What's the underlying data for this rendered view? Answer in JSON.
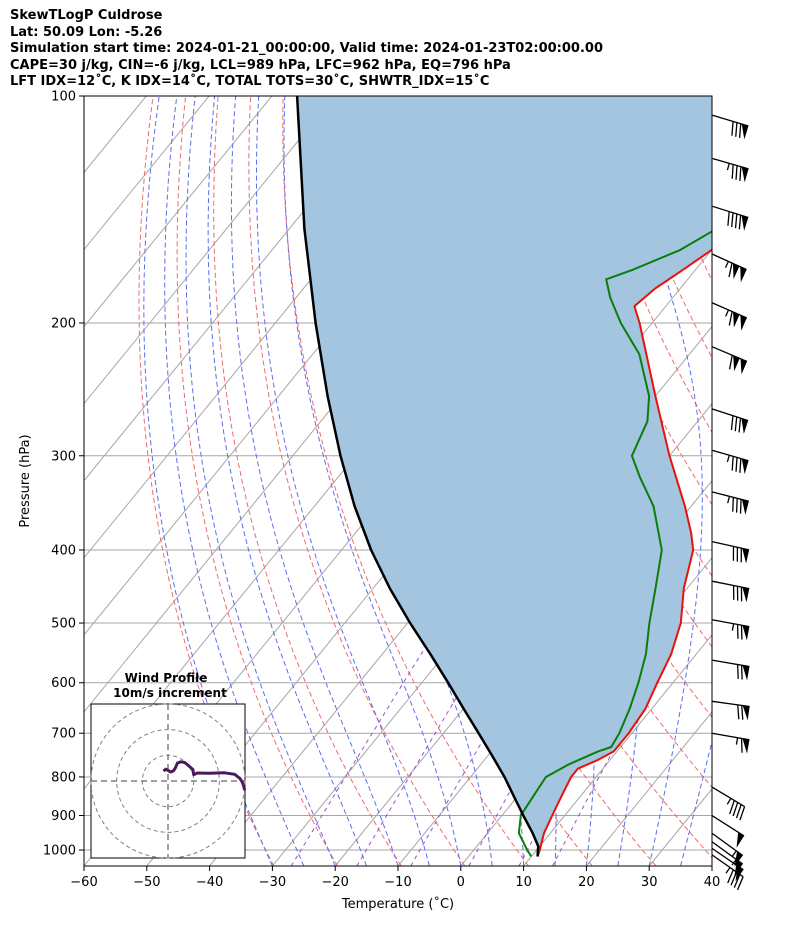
{
  "header": {
    "line1": "SkewTLogP Culdrose",
    "line2": "Lat: 50.09   Lon: -5.26",
    "line3": "Simulation start time: 2024-01-21_00:00:00, Valid time: 2024-01-23T02:00:00.00",
    "line4": "CAPE=30 j/kg, CIN=-6 j/kg, LCL=989 hPa, LFC=962 hPa, EQ=796 hPa",
    "line5": "LFT IDX=12˚C, K IDX=14˚C, TOTAL TOTS=30˚C, SHWTR_IDX=15˚C"
  },
  "chart_data": {
    "type": "line",
    "subtype": "skew-T log-P sounding",
    "xlabel": "Temperature (˚C)",
    "ylabel": "Pressure (hPa)",
    "xlim": [
      -60,
      40
    ],
    "ylim": [
      1050,
      100
    ],
    "y_scale": "log",
    "x_ticks": [
      -60,
      -50,
      -40,
      -30,
      -20,
      -10,
      0,
      10,
      20,
      30,
      40
    ],
    "y_ticks": [
      1000,
      900,
      800,
      700,
      600,
      500,
      400,
      300,
      200,
      100
    ],
    "grid": true,
    "colors": {
      "temperature": "#e8120c",
      "dewpoint": "#0a7d0a",
      "parcel": "#000000",
      "cape_fill": "#a3c5df",
      "dry_adiabats": "#f06a6a",
      "moist_adiabats": "#5a6ef0",
      "mixing_ratio": "#9c4fcf",
      "isotherms": "#a6a6a6",
      "hodograph": "#4a1a5e"
    },
    "series": [
      {
        "key": "temperature",
        "points": [
          [
            1020,
            11
          ],
          [
            1000,
            10.5
          ],
          [
            950,
            9
          ],
          [
            900,
            8
          ],
          [
            850,
            7
          ],
          [
            800,
            6
          ],
          [
            780,
            6
          ],
          [
            760,
            8
          ],
          [
            740,
            9.5
          ],
          [
            700,
            9.5
          ],
          [
            650,
            9
          ],
          [
            600,
            7.5
          ],
          [
            550,
            6
          ],
          [
            500,
            3.5
          ],
          [
            450,
            -0.5
          ],
          [
            400,
            -4
          ],
          [
            380,
            -6.5
          ],
          [
            350,
            -11
          ],
          [
            300,
            -20
          ],
          [
            250,
            -30
          ],
          [
            200,
            -42
          ],
          [
            190,
            -45
          ],
          [
            180,
            -44
          ],
          [
            170,
            -42
          ],
          [
            160,
            -40
          ],
          [
            150,
            -40
          ],
          [
            140,
            -41
          ],
          [
            130,
            -40
          ],
          [
            120,
            -37
          ],
          [
            110,
            -30
          ],
          [
            100,
            -28.5
          ]
        ]
      },
      {
        "key": "dewpoint",
        "points": [
          [
            1020,
            10
          ],
          [
            1000,
            8.5
          ],
          [
            950,
            5
          ],
          [
            900,
            3
          ],
          [
            850,
            2.5
          ],
          [
            800,
            2
          ],
          [
            770,
            4
          ],
          [
            740,
            7
          ],
          [
            730,
            8.5
          ],
          [
            700,
            8
          ],
          [
            650,
            6.5
          ],
          [
            600,
            4.5
          ],
          [
            550,
            2
          ],
          [
            500,
            -1.5
          ],
          [
            450,
            -5
          ],
          [
            400,
            -9
          ],
          [
            350,
            -16
          ],
          [
            320,
            -22
          ],
          [
            300,
            -26
          ],
          [
            270,
            -28
          ],
          [
            250,
            -31
          ],
          [
            220,
            -38
          ],
          [
            200,
            -45
          ],
          [
            185,
            -50
          ],
          [
            175,
            -53
          ],
          [
            170,
            -50
          ],
          [
            160,
            -45
          ],
          [
            150,
            -42
          ],
          [
            140,
            -43
          ],
          [
            130,
            -44
          ],
          [
            120,
            -46
          ],
          [
            110,
            -47
          ],
          [
            100,
            -46.5
          ]
        ]
      },
      {
        "key": "parcel",
        "points": [
          [
            1020,
            11
          ],
          [
            1000,
            10.2
          ],
          [
            989,
            9.8
          ],
          [
            950,
            7.2
          ],
          [
            900,
            3.4
          ],
          [
            850,
            -0.5
          ],
          [
            800,
            -4.6
          ],
          [
            750,
            -9.3
          ],
          [
            700,
            -14.4
          ],
          [
            650,
            -19.9
          ],
          [
            600,
            -25.8
          ],
          [
            550,
            -32.3
          ],
          [
            500,
            -39.6
          ],
          [
            450,
            -47.3
          ],
          [
            400,
            -55.3
          ],
          [
            350,
            -63.6
          ],
          [
            300,
            -72.4
          ],
          [
            250,
            -82.2
          ],
          [
            200,
            -93.6
          ],
          [
            150,
            -107.6
          ],
          [
            100,
            -126
          ]
        ]
      }
    ],
    "wind_barbs": [
      {
        "p": 1015,
        "u": -20,
        "v": 14
      },
      {
        "p": 995,
        "u": -22,
        "v": 15
      },
      {
        "p": 975,
        "u": -22,
        "v": 16
      },
      {
        "p": 950,
        "u": -22,
        "v": 16
      },
      {
        "p": 900,
        "u": -22,
        "v": 14
      },
      {
        "p": 825,
        "u": -20,
        "v": 12
      },
      {
        "p": 700,
        "u": -34,
        "v": 6
      },
      {
        "p": 635,
        "u": -36,
        "v": 5
      },
      {
        "p": 560,
        "u": -35,
        "v": 6
      },
      {
        "p": 495,
        "u": -38,
        "v": 7
      },
      {
        "p": 440,
        "u": -40,
        "v": 8
      },
      {
        "p": 390,
        "u": -41,
        "v": 9
      },
      {
        "p": 335,
        "u": -43,
        "v": 11
      },
      {
        "p": 295,
        "u": -42,
        "v": 12
      },
      {
        "p": 260,
        "u": -40,
        "v": 13
      },
      {
        "p": 215,
        "u": -52,
        "v": 22
      },
      {
        "p": 188,
        "u": -55,
        "v": 24
      },
      {
        "p": 162,
        "u": -53,
        "v": 24
      },
      {
        "p": 140,
        "u": -45,
        "v": 14
      },
      {
        "p": 121,
        "u": -42,
        "v": 12
      },
      {
        "p": 106,
        "u": -40,
        "v": 12
      }
    ]
  },
  "hodograph": {
    "title_line1": "Wind Profile",
    "title_line2": "10m/s increment",
    "rings_ms": [
      10,
      20,
      30
    ],
    "range_ms": 30,
    "trace_uv": [
      [
        29.9,
        -3.6
      ],
      [
        29.5,
        -2
      ],
      [
        29,
        -0.5
      ],
      [
        28,
        1
      ],
      [
        26,
        2.6
      ],
      [
        22,
        3.2
      ],
      [
        16,
        3
      ],
      [
        11.5,
        3.1
      ],
      [
        10,
        2.5
      ],
      [
        9.7,
        4.5
      ],
      [
        8,
        6
      ],
      [
        6.5,
        7.2
      ],
      [
        5,
        7.5
      ],
      [
        3.7,
        7
      ],
      [
        2.8,
        5
      ],
      [
        2.2,
        4
      ],
      [
        1,
        3.5
      ],
      [
        -0.8,
        4.6
      ],
      [
        -1.8,
        3.9
      ]
    ]
  }
}
